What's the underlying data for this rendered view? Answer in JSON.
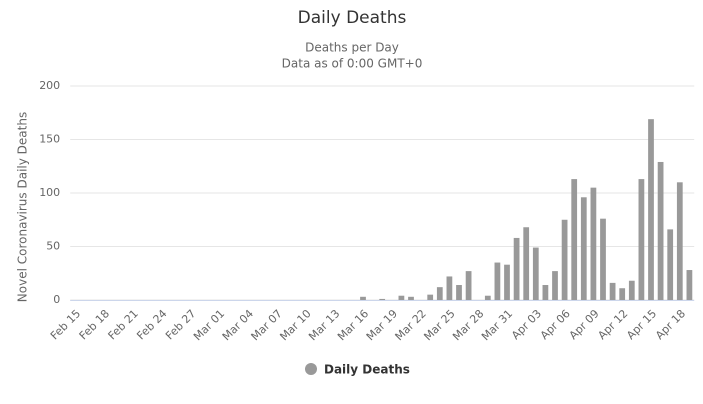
{
  "chart_data": {
    "type": "bar",
    "title": "Daily Deaths",
    "subtitle": [
      "Deaths per Day",
      "Data as of 0:00 GMT+0"
    ],
    "y_label": "Novel Coronavirus Daily Deaths",
    "categories": [
      "Feb 15",
      null,
      null,
      "Feb 18",
      null,
      null,
      "Feb 21",
      null,
      null,
      "Feb 24",
      null,
      null,
      "Feb 27",
      null,
      null,
      "Mar 01",
      null,
      null,
      "Mar 04",
      null,
      null,
      "Mar 07",
      null,
      null,
      "Mar 10",
      null,
      null,
      "Mar 13",
      null,
      null,
      "Mar 16",
      null,
      null,
      "Mar 19",
      null,
      null,
      "Mar 22",
      null,
      null,
      "Mar 25",
      null,
      null,
      "Mar 28",
      null,
      null,
      "Mar 31",
      null,
      null,
      "Apr 03",
      null,
      null,
      "Apr 06",
      null,
      null,
      "Apr 09",
      null,
      null,
      "Apr 12",
      null,
      null,
      "Apr 15",
      null,
      null,
      "Apr 18",
      null
    ],
    "series": [
      {
        "name": "Daily Deaths",
        "color": "#999999",
        "values": [
          0,
          0,
          0,
          0,
          0,
          0,
          0,
          0,
          0,
          0,
          0,
          0,
          0,
          0,
          0,
          0,
          0,
          0,
          0,
          0,
          0,
          0,
          0,
          0,
          0,
          0,
          0,
          0,
          0,
          0,
          3,
          0,
          1,
          0,
          4,
          3,
          0,
          5,
          12,
          22,
          14,
          27,
          0,
          4,
          35,
          33,
          58,
          68,
          49,
          14,
          27,
          75,
          113,
          96,
          105,
          76,
          16,
          11,
          18,
          113,
          169,
          129,
          66,
          110,
          28
        ]
      }
    ],
    "ylim": [
      0,
      200
    ],
    "yticks": [
      0,
      50,
      100,
      150,
      200
    ],
    "grid": true,
    "legend": "bottom"
  }
}
